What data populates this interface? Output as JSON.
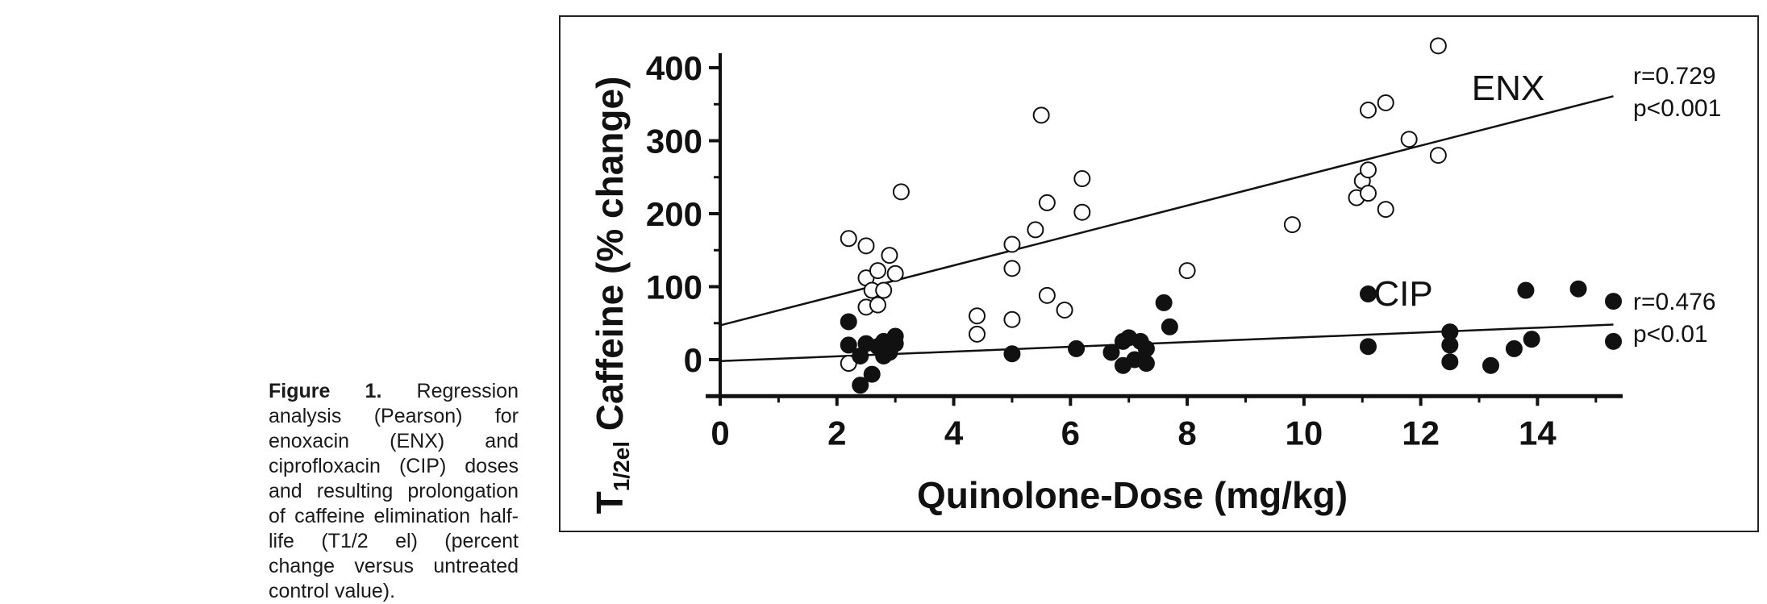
{
  "caption": {
    "label": "Figure 1.",
    "text": " Regression analysis (Pearson) for enoxacin (ENX) and ciprofloxacin (CIP) doses and resulting prolongation of caffeine elimination half-life (T1/2 el) (percent change versus untreated control value)."
  },
  "chart_data": {
    "type": "scatter",
    "xlabel": "Quinolone-Dose (mg/kg)",
    "ylabel_main": "T",
    "ylabel_sub": "1/2el",
    "ylabel_rest": " Caffeine (% change)",
    "xlim": [
      0,
      15.5
    ],
    "ylim": [
      -50,
      420
    ],
    "xticks": [
      0,
      2,
      4,
      6,
      8,
      10,
      12,
      14
    ],
    "yticks": [
      0,
      100,
      200,
      300,
      400
    ],
    "grid": false,
    "series": [
      {
        "name": "ENX",
        "marker": "open-circle",
        "stats": [
          "r=0.729",
          "p<0.001"
        ],
        "regression": {
          "x": [
            0,
            15.3
          ],
          "y": [
            47,
            361
          ]
        },
        "points": [
          [
            2.2,
            166
          ],
          [
            2.5,
            156
          ],
          [
            2.5,
            112
          ],
          [
            2.7,
            122
          ],
          [
            2.6,
            95
          ],
          [
            2.8,
            95
          ],
          [
            2.9,
            143
          ],
          [
            3.0,
            118
          ],
          [
            2.5,
            72
          ],
          [
            2.7,
            75
          ],
          [
            3.1,
            230
          ],
          [
            2.2,
            -5
          ],
          [
            4.4,
            35
          ],
          [
            4.4,
            60
          ],
          [
            5.0,
            55
          ],
          [
            5.0,
            125
          ],
          [
            5.0,
            158
          ],
          [
            5.4,
            178
          ],
          [
            5.6,
            215
          ],
          [
            5.5,
            335
          ],
          [
            5.6,
            88
          ],
          [
            5.9,
            68
          ],
          [
            6.2,
            202
          ],
          [
            6.2,
            248
          ],
          [
            8.0,
            122
          ],
          [
            9.8,
            185
          ],
          [
            10.9,
            222
          ],
          [
            11.0,
            245
          ],
          [
            11.1,
            260
          ],
          [
            11.1,
            228
          ],
          [
            11.1,
            342
          ],
          [
            11.4,
            352
          ],
          [
            11.4,
            206
          ],
          [
            11.8,
            302
          ],
          [
            12.3,
            280
          ],
          [
            12.3,
            430
          ]
        ]
      },
      {
        "name": "CIP",
        "marker": "filled-circle",
        "stats": [
          "r=0.476",
          "p<0.01"
        ],
        "regression": {
          "x": [
            0,
            15.3
          ],
          "y": [
            -2,
            48
          ]
        },
        "points": [
          [
            2.2,
            52
          ],
          [
            2.2,
            20
          ],
          [
            2.4,
            5
          ],
          [
            2.5,
            22
          ],
          [
            2.4,
            -35
          ],
          [
            2.6,
            -20
          ],
          [
            2.7,
            18
          ],
          [
            2.8,
            25
          ],
          [
            2.8,
            5
          ],
          [
            2.9,
            10
          ],
          [
            3.0,
            22
          ],
          [
            3.0,
            32
          ],
          [
            5.0,
            8
          ],
          [
            6.1,
            15
          ],
          [
            6.7,
            10
          ],
          [
            6.9,
            25
          ],
          [
            6.9,
            -8
          ],
          [
            7.0,
            30
          ],
          [
            7.1,
            0
          ],
          [
            7.2,
            25
          ],
          [
            7.3,
            15
          ],
          [
            7.3,
            -5
          ],
          [
            7.6,
            78
          ],
          [
            7.7,
            45
          ],
          [
            11.1,
            90
          ],
          [
            11.1,
            18
          ],
          [
            12.5,
            38
          ],
          [
            12.5,
            20
          ],
          [
            12.5,
            -3
          ],
          [
            13.2,
            -8
          ],
          [
            13.6,
            15
          ],
          [
            13.8,
            95
          ],
          [
            13.9,
            28
          ],
          [
            14.7,
            97
          ],
          [
            15.3,
            80
          ],
          [
            15.3,
            25
          ]
        ]
      }
    ]
  }
}
